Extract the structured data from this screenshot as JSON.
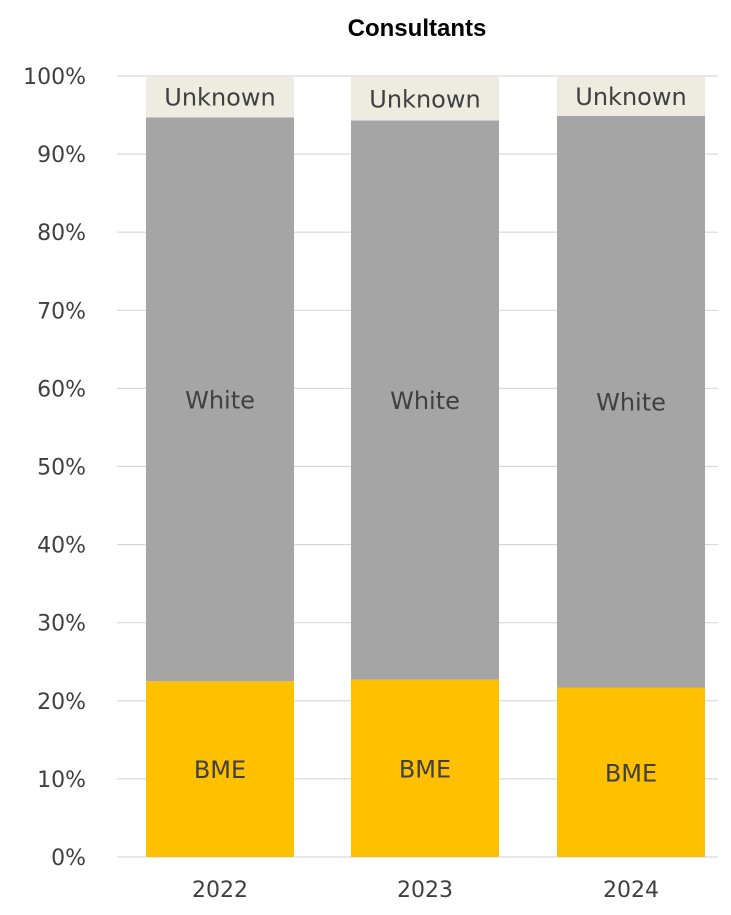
{
  "chart_data": {
    "type": "bar",
    "stacked": true,
    "title": "Consultants",
    "xlabel": "",
    "ylabel": "",
    "ylim": [
      0,
      100
    ],
    "yticks": [
      "0%",
      "10%",
      "20%",
      "30%",
      "40%",
      "50%",
      "60%",
      "70%",
      "80%",
      "90%",
      "100%"
    ],
    "grid": true,
    "categories": [
      "2022",
      "2023",
      "2024"
    ],
    "series": [
      {
        "name": "BME",
        "color": "#FFC000",
        "values": [
          22.5,
          22.7,
          21.7
        ]
      },
      {
        "name": "White",
        "color": "#A5A5A5",
        "values": [
          72.2,
          71.6,
          73.2
        ]
      },
      {
        "name": "Unknown",
        "color": "#EEECE1",
        "values": [
          5.3,
          5.7,
          5.1
        ]
      }
    ]
  }
}
